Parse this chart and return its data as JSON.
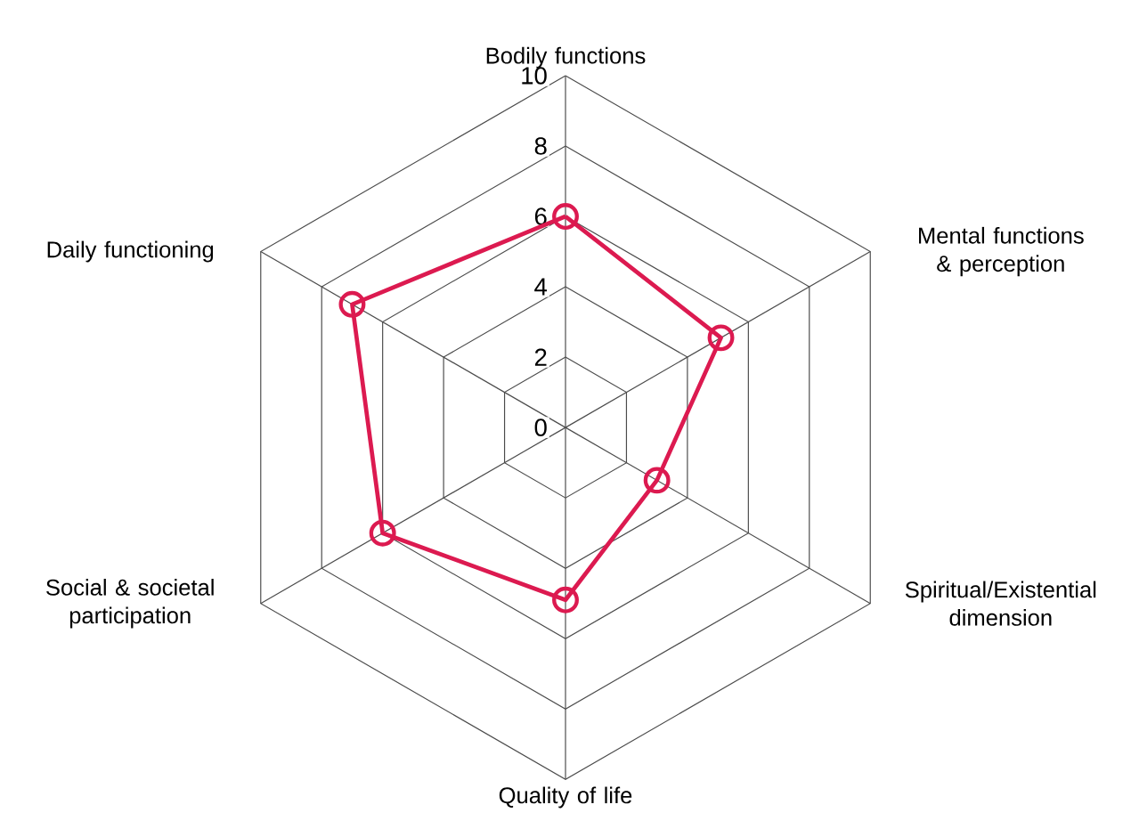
{
  "chart_data": {
    "type": "radar",
    "categories": [
      "Bodily functions",
      "Mental functions & perception",
      "Spiritual/Existential dimension",
      "Quality of life",
      "Social & societal participation",
      "Daily functioning"
    ],
    "series": [
      {
        "color": "#dc1a50",
        "values": [
          6,
          5.1,
          3,
          4.9,
          6,
          7
        ]
      }
    ],
    "ylim": [
      0,
      10
    ],
    "yticks": [
      0,
      2,
      4,
      6,
      8,
      10
    ],
    "grid": true,
    "marker": "circle"
  }
}
